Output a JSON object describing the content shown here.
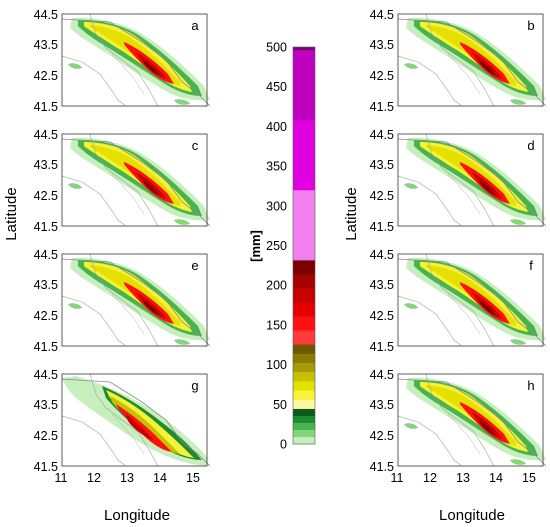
{
  "axis": {
    "xlabel": "Longitude",
    "ylabel": "Latitude",
    "lat_ticks": [
      "44.5",
      "43.5",
      "42.5",
      "41.5"
    ],
    "lon_ticks": [
      "11",
      "12",
      "13",
      "14",
      "15"
    ]
  },
  "panels": [
    {
      "label": "a"
    },
    {
      "label": "b"
    },
    {
      "label": "c"
    },
    {
      "label": "d"
    },
    {
      "label": "e"
    },
    {
      "label": "f"
    },
    {
      "label": "g"
    },
    {
      "label": "h"
    }
  ],
  "colorbar": {
    "unit_label": "[mm]",
    "tick_labels": [
      "500",
      "450",
      "400",
      "350",
      "300",
      "250",
      "200",
      "150",
      "100",
      "50",
      "0"
    ],
    "colors_top_to_bottom": [
      "#6e0b6e",
      "#c000c0",
      "#e000e0",
      "#f080f0",
      "#7a0000",
      "#a80000",
      "#c80000",
      "#e40000",
      "#ff1010",
      "#ff3a3a",
      "#6b5a00",
      "#8a7a00",
      "#a89a00",
      "#c8c000",
      "#e6e000",
      "#f6f23a",
      "#fbf8a0",
      "#0b5a1a",
      "#1f8a2e",
      "#49b34d",
      "#86d47e",
      "#c6efbd"
    ]
  }
}
